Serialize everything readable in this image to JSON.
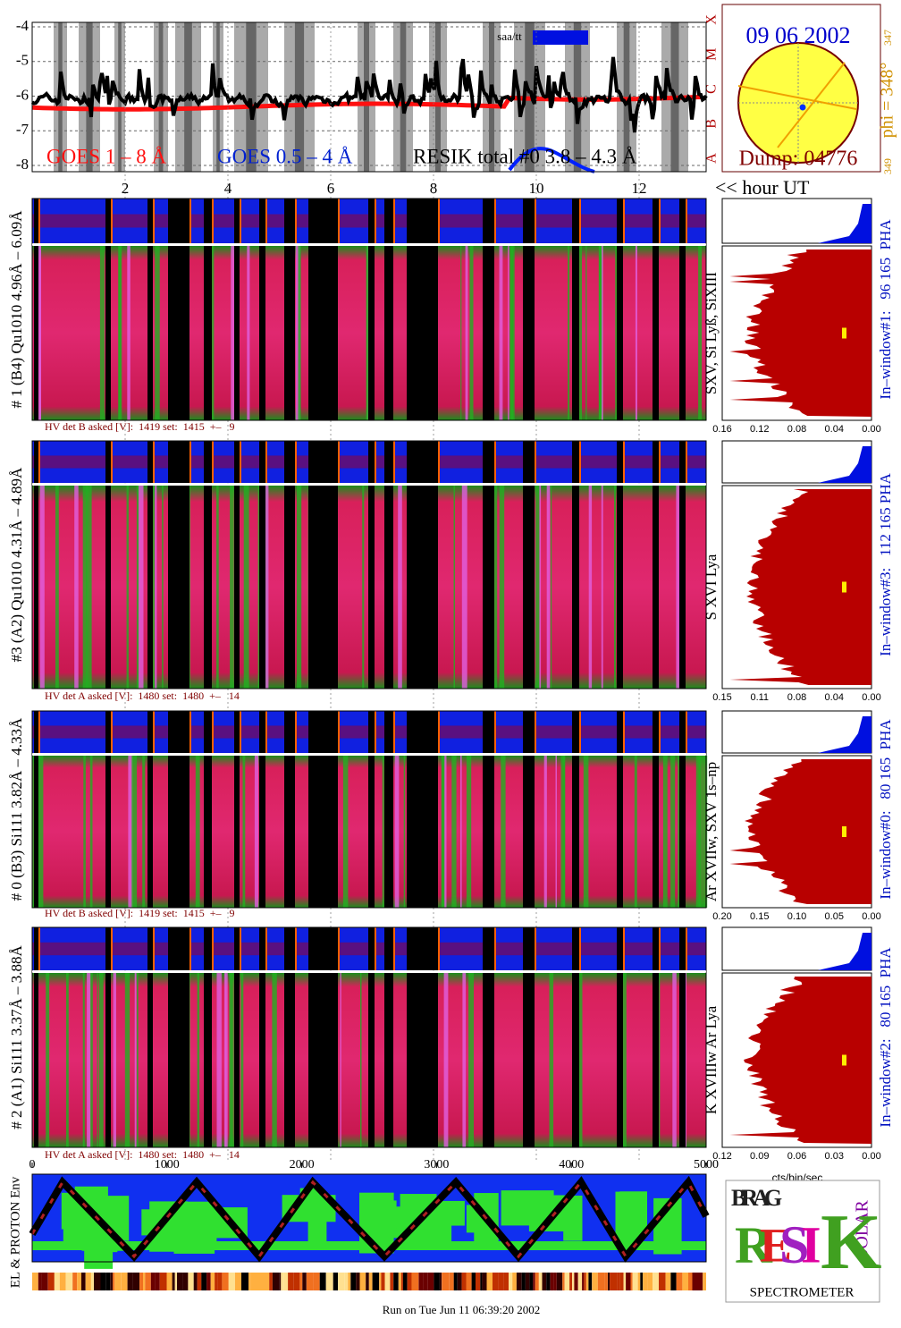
{
  "goes": {
    "yticks": [
      -4,
      -5,
      -6,
      -7,
      -8
    ],
    "classes": [
      "X",
      "M",
      "C",
      "B",
      "A"
    ],
    "legend": [
      "GOES 1 – 8 Å",
      "GOES 0.5 – 4 Å",
      "RESIK total #0  3.8 – 4.3 Å"
    ],
    "saa_label": "saa/tt"
  },
  "orbit": {
    "date": "09 06 2002",
    "dump": "Dump: 04776",
    "phi": "phi = 348°",
    "phi_min": "347",
    "phi_max": "349"
  },
  "hour_ticks": [
    2,
    4,
    6,
    8,
    10,
    12
  ],
  "hour_label": "<< hour UT",
  "detectors": [
    {
      "label": "# 1 (B4) Qu1010 4.96Å – 6.09Å",
      "hv": "HV det B asked [V]:  1419 set:  1415  +–   9",
      "lines": "SXV, Si Lyß, SiXIII",
      "window": "In–window#1:   96 165  PHA",
      "xticks": [
        "0.16",
        "0.12",
        "0.08",
        "0.04",
        "0.00"
      ]
    },
    {
      "label": "#3 (A2) Qu1010  4.31Å – 4.89Å",
      "hv": "HV det A asked [V]:  1480 set:  1480  +–   14",
      "lines": "S XVI Lya",
      "window": "In–window#3:   112 165 PHA",
      "xticks": [
        "0.15",
        "0.11",
        "0.08",
        "0.04",
        "0.00"
      ]
    },
    {
      "label": "# 0 (B3) Si111  3.82Å – 4.33Å",
      "hv": "HV det B asked [V]:  1419 set:  1415  +–   9",
      "lines": "Ar XVIIw,  SXV 1s–np",
      "window": "In–window#0:   80 165  PHA",
      "xticks": [
        "0.20",
        "0.15",
        "0.10",
        "0.05",
        "0.00"
      ]
    },
    {
      "label": "# 2 (A1) Si111  3.37Å – 3.88Å",
      "hv": "HV det A asked [V]:  1480 set:  1480  +–   14",
      "lines": "K XVIIIw  Ar Lya",
      "window": "In–window#2:   80 165  PHA",
      "xticks": [
        "0.12",
        "0.09",
        "0.06",
        "0.03",
        "0.00"
      ]
    }
  ],
  "bin_ticks": [
    0,
    1000,
    2000,
    3000,
    4000,
    5000
  ],
  "cts_label": "cts/bin/sec",
  "env_label": "EL & PROTON Env",
  "run_label": "Run on Tue Jun 11 06:39:20 2002",
  "logo": {
    "top": "BRAG",
    "main": [
      "R",
      "E",
      "S",
      "I",
      "K"
    ],
    "side": "SOLAR",
    "caption": "SPECTROMETER"
  }
}
